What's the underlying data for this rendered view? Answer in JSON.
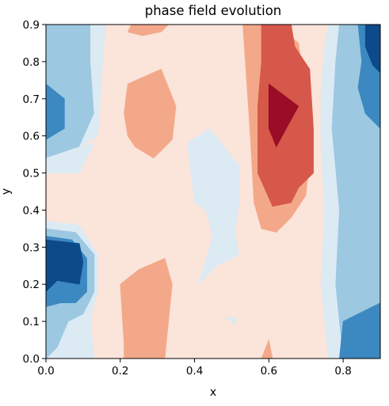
{
  "chart_data": {
    "type": "contourf",
    "title": "phase field evolution",
    "xlabel": "x",
    "ylabel": "y",
    "xlim": [
      0.0,
      0.9
    ],
    "ylim": [
      0.0,
      0.9
    ],
    "grid": false,
    "legend": "none",
    "colormap": "RdBu_r",
    "x_ticks": [
      {
        "value": 0.0,
        "label": "0.0"
      },
      {
        "value": 0.2,
        "label": "0.2"
      },
      {
        "value": 0.4,
        "label": "0.4"
      },
      {
        "value": 0.6,
        "label": "0.6"
      },
      {
        "value": 0.8,
        "label": "0.8"
      }
    ],
    "y_ticks": [
      {
        "value": 0.0,
        "label": "0.0"
      },
      {
        "value": 0.1,
        "label": "0.1"
      },
      {
        "value": 0.2,
        "label": "0.2"
      },
      {
        "value": 0.3,
        "label": "0.3"
      },
      {
        "value": 0.4,
        "label": "0.4"
      },
      {
        "value": 0.5,
        "label": "0.5"
      },
      {
        "value": 0.6,
        "label": "0.6"
      },
      {
        "value": 0.7,
        "label": "0.7"
      },
      {
        "value": 0.8,
        "label": "0.8"
      },
      {
        "value": 0.9,
        "label": "0.9"
      }
    ],
    "level_colors": [
      "#0d4a8a",
      "#3c88c0",
      "#9cc8e1",
      "#dceaf4",
      "#fbe4d9",
      "#f4a88a",
      "#d5584b",
      "#9b0d26"
    ],
    "regions": [
      {
        "level": 4,
        "color": "#fbe4d9",
        "points": [
          [
            0,
            0
          ],
          [
            0.9,
            0
          ],
          [
            0.9,
            0.9
          ],
          [
            0,
            0.9
          ]
        ]
      },
      {
        "level": 2,
        "color": "#9cc8e1",
        "points": [
          [
            0,
            0.9
          ],
          [
            0.12,
            0.9
          ],
          [
            0.12,
            0.8
          ],
          [
            0.13,
            0.66
          ],
          [
            0.09,
            0.57
          ],
          [
            0,
            0.54
          ]
        ]
      },
      {
        "level": 3,
        "color": "#dceaf4",
        "points": [
          [
            0.12,
            0.9
          ],
          [
            0.16,
            0.9
          ],
          [
            0.14,
            0.6
          ],
          [
            0.09,
            0.57
          ],
          [
            0.13,
            0.66
          ],
          [
            0.12,
            0.8
          ]
        ]
      },
      {
        "level": 3,
        "color": "#dceaf4",
        "points": [
          [
            0,
            0.54
          ],
          [
            0.09,
            0.57
          ],
          [
            0.13,
            0.58
          ],
          [
            0.09,
            0.5
          ],
          [
            0,
            0.5
          ]
        ]
      },
      {
        "level": 1,
        "color": "#3c88c0",
        "points": [
          [
            0,
            0.74
          ],
          [
            0.05,
            0.7
          ],
          [
            0.05,
            0.62
          ],
          [
            0,
            0.59
          ]
        ]
      },
      {
        "level": 3,
        "color": "#dceaf4",
        "points": [
          [
            0,
            0.37
          ],
          [
            0.09,
            0.36
          ],
          [
            0.14,
            0.28
          ],
          [
            0.14,
            0.18
          ],
          [
            0.12,
            0.11
          ],
          [
            0.13,
            0
          ],
          [
            0,
            0
          ]
        ]
      },
      {
        "level": 2,
        "color": "#9cc8e1",
        "points": [
          [
            0,
            0.35
          ],
          [
            0.08,
            0.34
          ],
          [
            0.13,
            0.28
          ],
          [
            0.13,
            0.18
          ],
          [
            0.1,
            0.12
          ],
          [
            0.06,
            0.1
          ],
          [
            0.03,
            0.03
          ],
          [
            0,
            0.0
          ]
        ]
      },
      {
        "level": 1,
        "color": "#3c88c0",
        "points": [
          [
            0,
            0.33
          ],
          [
            0.07,
            0.32
          ],
          [
            0.11,
            0.27
          ],
          [
            0.11,
            0.18
          ],
          [
            0.08,
            0.15
          ],
          [
            0.04,
            0.15
          ],
          [
            0,
            0.14
          ]
        ]
      },
      {
        "level": 0,
        "color": "#0d4a8a",
        "points": [
          [
            0,
            0.32
          ],
          [
            0.09,
            0.31
          ],
          [
            0.1,
            0.26
          ],
          [
            0.09,
            0.2
          ],
          [
            0.03,
            0.21
          ],
          [
            0,
            0.18
          ]
        ]
      },
      {
        "level": 3,
        "color": "#dceaf4",
        "points": [
          [
            0.38,
            0.58
          ],
          [
            0.4,
            0.42
          ],
          [
            0.43,
            0.4
          ],
          [
            0.46,
            0.29
          ],
          [
            0.45,
            0.33
          ],
          [
            0.41,
            0.2
          ],
          [
            0.46,
            0.25
          ],
          [
            0.52,
            0.28
          ],
          [
            0.51,
            0.34
          ],
          [
            0.52,
            0.42
          ],
          [
            0.52,
            0.52
          ],
          [
            0.44,
            0.62
          ]
        ]
      },
      {
        "level": 3,
        "color": "#dceaf4",
        "points": [
          [
            0.48,
            0.11
          ],
          [
            0.51,
            0.11
          ],
          [
            0.51,
            0.09
          ],
          [
            0.5,
            0.1
          ]
        ]
      },
      {
        "level": 5,
        "color": "#f4a88a",
        "points": [
          [
            0.23,
            0.9
          ],
          [
            0.33,
            0.9
          ],
          [
            0.31,
            0.88
          ],
          [
            0.26,
            0.87
          ],
          [
            0.22,
            0.88
          ]
        ]
      },
      {
        "level": 5,
        "color": "#f4a88a",
        "points": [
          [
            0.22,
            0.74
          ],
          [
            0.31,
            0.78
          ],
          [
            0.35,
            0.68
          ],
          [
            0.34,
            0.59
          ],
          [
            0.29,
            0.54
          ],
          [
            0.24,
            0.57
          ],
          [
            0.22,
            0.6
          ],
          [
            0.21,
            0.66
          ]
        ]
      },
      {
        "level": 5,
        "color": "#f4a88a",
        "points": [
          [
            0.2,
            0.2
          ],
          [
            0.25,
            0.24
          ],
          [
            0.32,
            0.27
          ],
          [
            0.34,
            0.2
          ],
          [
            0.33,
            0.1
          ],
          [
            0.32,
            0
          ],
          [
            0.21,
            0
          ],
          [
            0.21,
            0.04
          ]
        ]
      },
      {
        "level": 5,
        "color": "#f4a88a",
        "points": [
          [
            0.53,
            0.9
          ],
          [
            0.62,
            0.9
          ],
          [
            0.68,
            0.85
          ],
          [
            0.7,
            0.7
          ],
          [
            0.71,
            0.55
          ],
          [
            0.7,
            0.44
          ],
          [
            0.66,
            0.38
          ],
          [
            0.62,
            0.34
          ],
          [
            0.58,
            0.35
          ],
          [
            0.56,
            0.42
          ],
          [
            0.55,
            0.6
          ],
          [
            0.54,
            0.75
          ]
        ]
      },
      {
        "level": 5,
        "color": "#f4a88a",
        "points": [
          [
            0.58,
            0.0
          ],
          [
            0.61,
            0.0
          ],
          [
            0.6,
            0.05
          ]
        ]
      },
      {
        "level": 6,
        "color": "#d5584b",
        "points": [
          [
            0.58,
            0.9
          ],
          [
            0.66,
            0.9
          ],
          [
            0.67,
            0.84
          ],
          [
            0.71,
            0.78
          ],
          [
            0.72,
            0.62
          ],
          [
            0.72,
            0.5
          ],
          [
            0.68,
            0.46
          ],
          [
            0.66,
            0.42
          ],
          [
            0.61,
            0.41
          ],
          [
            0.57,
            0.5
          ],
          [
            0.57,
            0.68
          ],
          [
            0.58,
            0.8
          ]
        ]
      },
      {
        "level": 7,
        "color": "#9b0d26",
        "points": [
          [
            0.6,
            0.74
          ],
          [
            0.68,
            0.68
          ],
          [
            0.62,
            0.57
          ],
          [
            0.6,
            0.62
          ],
          [
            0.6,
            0.7
          ]
        ]
      },
      {
        "level": 3,
        "color": "#dceaf4",
        "points": [
          [
            0.76,
            0.9
          ],
          [
            0.82,
            0.9
          ],
          [
            0.81,
            0.8
          ],
          [
            0.79,
            0.62
          ],
          [
            0.8,
            0.4
          ],
          [
            0.79,
            0.2
          ],
          [
            0.81,
            0.0
          ],
          [
            0.76,
            0.0
          ],
          [
            0.74,
            0.2
          ],
          [
            0.75,
            0.4
          ],
          [
            0.74,
            0.58
          ],
          [
            0.74,
            0.72
          ],
          [
            0.75,
            0.84
          ]
        ]
      },
      {
        "level": 2,
        "color": "#9cc8e1",
        "points": [
          [
            0.79,
            0.9
          ],
          [
            0.9,
            0.9
          ],
          [
            0.9,
            0.0
          ],
          [
            0.8,
            0.0
          ],
          [
            0.78,
            0.2
          ],
          [
            0.79,
            0.4
          ],
          [
            0.77,
            0.62
          ],
          [
            0.78,
            0.8
          ]
        ]
      },
      {
        "level": 1,
        "color": "#3c88c0",
        "points": [
          [
            0.84,
            0.9
          ],
          [
            0.9,
            0.9
          ],
          [
            0.9,
            0.62
          ],
          [
            0.86,
            0.66
          ],
          [
            0.84,
            0.73
          ],
          [
            0.85,
            0.8
          ]
        ]
      },
      {
        "level": 0,
        "color": "#0d4a8a",
        "points": [
          [
            0.86,
            0.9
          ],
          [
            0.9,
            0.9
          ],
          [
            0.9,
            0.77
          ],
          [
            0.88,
            0.79
          ],
          [
            0.86,
            0.84
          ]
        ]
      },
      {
        "level": 1,
        "color": "#3c88c0",
        "points": [
          [
            0.79,
            0.0
          ],
          [
            0.9,
            0.0
          ],
          [
            0.9,
            0.15
          ],
          [
            0.84,
            0.12
          ],
          [
            0.8,
            0.1
          ]
        ]
      }
    ]
  }
}
